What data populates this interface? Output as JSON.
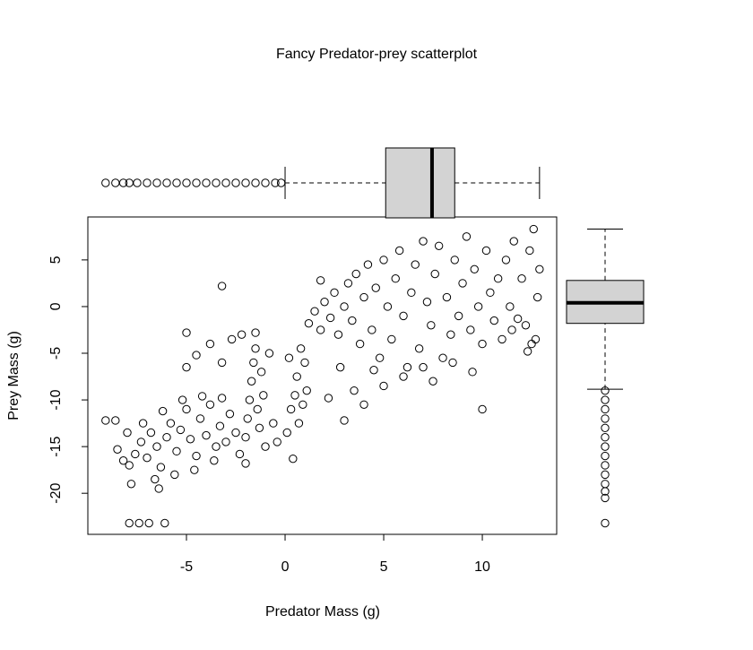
{
  "chart_data": [
    {
      "type": "scatter",
      "title": "Fancy Predator-prey scatterplot",
      "xlabel": "Predator Mass (g)",
      "ylabel": "Prey Mass (g)",
      "color": "#000000",
      "xlim": [
        -10,
        13.77
      ],
      "ylim": [
        -24.4,
        9.6
      ],
      "xticks": [
        -5,
        0,
        5,
        10
      ],
      "yticks": [
        -20,
        -15,
        -10,
        -5,
        0,
        5
      ],
      "x": [
        -8.5,
        -8.2,
        -7.9,
        -7.6,
        -7.3,
        -7,
        -6.8,
        -6.5,
        -6.3,
        -6,
        -5.8,
        -5.5,
        -5.3,
        -5,
        -4.8,
        -4.5,
        -4.3,
        -4,
        -3.8,
        -3.5,
        -3.3,
        -3,
        -2.8,
        -2.5,
        -2.3,
        -6.2,
        -5.2,
        -4.2,
        -3.2,
        -7.2,
        -8,
        -6.6,
        -5.6,
        -4.6,
        -3.6,
        -2,
        -7.8,
        -6.4,
        -8.6,
        -5,
        -4.5,
        -3.8,
        -3.2,
        -2.7,
        -2,
        -1.9,
        -1.8,
        -1.7,
        -1.6,
        -1.5,
        -1.4,
        -1.3,
        -1.2,
        -1.1,
        -1,
        -0.8,
        -0.6,
        -0.4,
        -2.2,
        -1.5,
        0.1,
        0.3,
        0.5,
        0.7,
        0.9,
        1.1,
        1,
        0.6,
        0.8,
        0.2,
        0.4,
        1.2,
        1.5,
        1.8,
        2,
        2.3,
        2.5,
        2.7,
        3,
        3.2,
        3.4,
        3.6,
        3.8,
        4,
        4.2,
        4.4,
        4.6,
        4.8,
        5,
        5.2,
        5.4,
        5.6,
        5.8,
        6,
        6.2,
        6.4,
        6.6,
        6.8,
        7,
        7.2,
        7.4,
        7.6,
        7.8,
        8,
        8.2,
        8.4,
        8.6,
        8.8,
        9,
        9.2,
        9.4,
        9.6,
        9.8,
        10,
        10.2,
        10.4,
        10.6,
        10.8,
        11,
        11.2,
        11.4,
        11.6,
        11.8,
        12,
        12.2,
        12.4,
        12.6,
        12.8,
        12.9,
        12.5,
        12.7,
        2.8,
        3.5,
        4,
        5,
        6,
        7,
        7.5,
        8.5,
        3,
        10,
        9.5,
        4.5,
        1.8,
        2.2,
        12.3,
        11.5,
        -7.9,
        -7.4,
        -6.9,
        -6.1,
        -9.1,
        -5,
        -3.2
      ],
      "y": [
        -15.3,
        -16.5,
        -17,
        -15.8,
        -14.5,
        -16.2,
        -13.5,
        -15,
        -17.2,
        -14,
        -12.5,
        -15.5,
        -13.2,
        -11,
        -14.2,
        -16,
        -12,
        -13.8,
        -10.5,
        -15,
        -12.8,
        -14.5,
        -11.5,
        -13.5,
        -15.8,
        -11.2,
        -10,
        -9.6,
        -9.8,
        -12.5,
        -13.5,
        -18.5,
        -18,
        -17.5,
        -16.5,
        -16.8,
        -19,
        -19.5,
        -12.2,
        -6.5,
        -5.2,
        -4,
        -6,
        -3.5,
        -14,
        -12,
        -10,
        -8,
        -6,
        -4.5,
        -11,
        -13,
        -7,
        -9.5,
        -15,
        -5,
        -12.5,
        -14.5,
        -3,
        -2.8,
        -13.5,
        -11,
        -9.5,
        -12.5,
        -10.5,
        -9,
        -6,
        -7.5,
        -4.5,
        -5.5,
        -16.3,
        -1.8,
        -0.5,
        -2.5,
        0.5,
        -1.2,
        1.5,
        -3,
        0,
        2.5,
        -1.5,
        3.5,
        -4,
        1,
        4.5,
        -2.5,
        2,
        -5.5,
        5,
        0,
        -3.5,
        3,
        6,
        -1,
        -6.5,
        1.5,
        4.5,
        -4.5,
        7,
        0.5,
        -2,
        3.5,
        6.5,
        -5.5,
        1,
        -3,
        5,
        -1,
        2.5,
        7.5,
        -2.5,
        4,
        0,
        -4,
        6,
        1.5,
        -1.5,
        3,
        -3.5,
        5,
        0,
        7,
        -1.3,
        3,
        -2,
        6,
        8.3,
        1,
        4,
        -4,
        -3.5,
        -6.5,
        -9,
        -10.5,
        -8.5,
        -7.5,
        -6.5,
        -8,
        -6,
        -12.2,
        -11,
        -7,
        -6.8,
        2.8,
        -9.8,
        -4.8,
        -2.5,
        -23.2,
        -23.2,
        -23.2,
        -23.2,
        -12.2,
        -2.8,
        2.2
      ]
    },
    {
      "type": "boxplot",
      "orientation": "horizontal",
      "color": "#d3d3d3",
      "xlim": [
        -10,
        13.77
      ],
      "min": 0,
      "q1": 5.1,
      "median": 7.45,
      "q3": 8.6,
      "max": 12.9,
      "outliers": [
        -9.1,
        -8.6,
        -8.2,
        -7.9,
        -7.5,
        -7,
        -6.5,
        -6,
        -5.5,
        -5,
        -4.5,
        -4,
        -3.5,
        -3,
        -2.5,
        -2,
        -1.5,
        -1,
        -0.5,
        -0.2
      ]
    },
    {
      "type": "boxplot",
      "orientation": "vertical",
      "color": "#d3d3d3",
      "ylim": [
        -24.4,
        9.6
      ],
      "min": -8.85,
      "q1": -1.8,
      "median": 0.4,
      "q3": 2.8,
      "max": 8.3,
      "outliers": [
        -9,
        -10,
        -11,
        -12,
        -13,
        -14,
        -15,
        -16,
        -17,
        -18,
        -19,
        -19.8,
        -20.5,
        -23.2
      ]
    }
  ]
}
